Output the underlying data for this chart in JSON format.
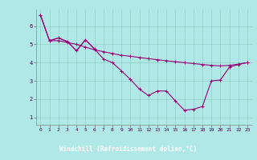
{
  "xlabel": "Windchill (Refroidissement éolien,°C)",
  "background_color": "#b0e8e8",
  "label_bar_color": "#880088",
  "label_text_color": "#ffffff",
  "line_color": "#990077",
  "x_ticks": [
    0,
    1,
    2,
    3,
    4,
    5,
    6,
    7,
    8,
    9,
    10,
    11,
    12,
    13,
    14,
    15,
    16,
    17,
    18,
    19,
    20,
    21,
    22,
    23
  ],
  "y_ticks": [
    1,
    2,
    3,
    4,
    5,
    6
  ],
  "xlim": [
    -0.5,
    23.5
  ],
  "ylim": [
    0.6,
    6.9
  ],
  "line1_x": [
    0,
    1,
    2,
    3,
    4,
    5,
    6,
    7,
    8,
    9,
    10,
    11,
    12,
    13,
    14,
    15,
    16,
    17,
    18,
    19,
    20,
    21,
    22,
    23
  ],
  "line1_y": [
    6.6,
    5.2,
    5.2,
    5.1,
    5.0,
    4.85,
    4.7,
    4.6,
    4.5,
    4.4,
    4.35,
    4.28,
    4.22,
    4.16,
    4.1,
    4.05,
    4.0,
    3.95,
    3.9,
    3.85,
    3.82,
    3.85,
    3.92,
    4.0
  ],
  "line2_x": [
    0,
    1,
    2,
    3,
    4,
    5,
    6,
    7,
    8,
    9,
    10,
    11,
    12,
    13,
    14,
    15,
    16,
    17,
    18,
    19,
    20,
    21,
    22,
    23
  ],
  "line2_y": [
    6.6,
    5.2,
    5.35,
    5.15,
    4.65,
    5.25,
    4.75,
    4.2,
    4.0,
    3.55,
    3.08,
    2.55,
    2.2,
    2.45,
    2.45,
    1.9,
    1.4,
    1.45,
    1.6,
    3.0,
    3.05,
    3.75,
    3.9,
    4.0
  ],
  "line3_x": [
    1,
    2,
    3,
    4,
    5,
    6
  ],
  "line3_y": [
    5.2,
    5.35,
    5.15,
    4.65,
    5.25,
    4.75
  ]
}
